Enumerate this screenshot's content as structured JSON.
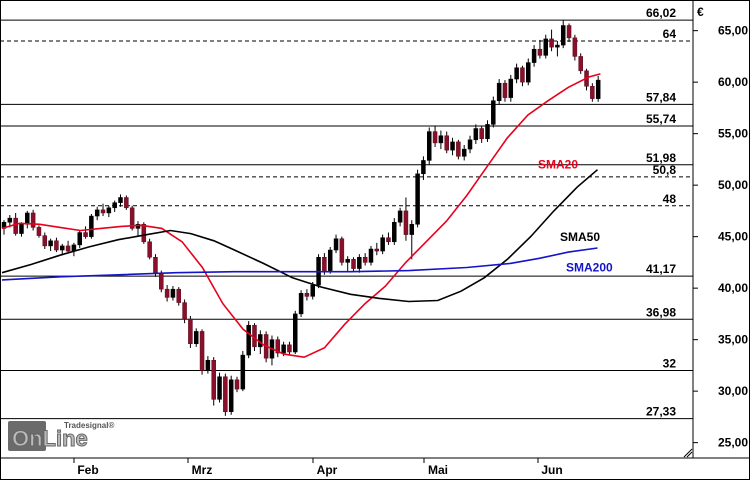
{
  "chart_data": {
    "type": "candlestick",
    "currency_label": "€",
    "y_ticks": [
      "25,00",
      "30,00",
      "35,00",
      "40,00",
      "45,00",
      "50,00",
      "55,00",
      "60,00",
      "65,00"
    ],
    "y_tick_values": [
      25,
      30,
      35,
      40,
      45,
      50,
      55,
      60,
      65
    ],
    "ylim": [
      23.8,
      67.2
    ],
    "x_ticks": [
      "Feb",
      "Mrz",
      "Apr",
      "Mai",
      "Jun"
    ],
    "x_tick_days": [
      22,
      64,
      106,
      148,
      189
    ],
    "xlim": [
      0,
      252
    ],
    "grid": "horizontal levels",
    "levels": [
      {
        "value": 66.02,
        "label": "66,02",
        "style": "solid"
      },
      {
        "value": 64,
        "label": "64",
        "style": "dashed"
      },
      {
        "value": 57.84,
        "label": "57,84",
        "style": "solid"
      },
      {
        "value": 55.74,
        "label": "55,74",
        "style": "solid"
      },
      {
        "value": 51.98,
        "label": "51,98",
        "style": "solid"
      },
      {
        "value": 50.8,
        "label": "50,8",
        "style": "dashed"
      },
      {
        "value": 48,
        "label": "48",
        "style": "dashed"
      },
      {
        "value": 41.17,
        "label": "41,17",
        "style": "solid"
      },
      {
        "value": 36.98,
        "label": "36,98",
        "style": "solid"
      },
      {
        "value": 32,
        "label": "32",
        "style": "solid"
      },
      {
        "value": 27.33,
        "label": "27,33",
        "style": "solid"
      }
    ],
    "series": [
      {
        "name": "SMA20",
        "color": "#e8001c",
        "points": [
          [
            0,
            45.8
          ],
          [
            6,
            46.3
          ],
          [
            13,
            46.2
          ],
          [
            20,
            45.9
          ],
          [
            27,
            45.6
          ],
          [
            34,
            45.8
          ],
          [
            41,
            46.0
          ],
          [
            48,
            46.1
          ],
          [
            55,
            45.8
          ],
          [
            62,
            44.5
          ],
          [
            69,
            42.0
          ],
          [
            76,
            38.5
          ],
          [
            83,
            36.0
          ],
          [
            90,
            34.5
          ],
          [
            97,
            33.6
          ],
          [
            104,
            33.3
          ],
          [
            111,
            34.2
          ],
          [
            118,
            36.5
          ],
          [
            125,
            38.5
          ],
          [
            132,
            40.2
          ],
          [
            139,
            42.5
          ],
          [
            146,
            44.5
          ],
          [
            153,
            46.5
          ],
          [
            160,
            49.0
          ],
          [
            167,
            51.8
          ],
          [
            174,
            54.6
          ],
          [
            181,
            56.8
          ],
          [
            188,
            58.2
          ],
          [
            195,
            59.5
          ],
          [
            202,
            60.5
          ],
          [
            206,
            60.8
          ]
        ]
      },
      {
        "name": "SMA50",
        "color": "#000000",
        "points": [
          [
            0,
            41.5
          ],
          [
            10,
            42.3
          ],
          [
            20,
            43.2
          ],
          [
            30,
            44.0
          ],
          [
            40,
            44.7
          ],
          [
            50,
            45.2
          ],
          [
            58,
            45.6
          ],
          [
            65,
            45.3
          ],
          [
            73,
            44.6
          ],
          [
            80,
            43.7
          ],
          [
            90,
            42.4
          ],
          [
            100,
            41.0
          ],
          [
            110,
            40.1
          ],
          [
            120,
            39.4
          ],
          [
            130,
            39.0
          ],
          [
            140,
            38.7
          ],
          [
            150,
            38.8
          ],
          [
            158,
            39.7
          ],
          [
            166,
            41.0
          ],
          [
            174,
            42.8
          ],
          [
            182,
            45.0
          ],
          [
            190,
            47.5
          ],
          [
            198,
            49.8
          ],
          [
            205,
            51.5
          ]
        ]
      },
      {
        "name": "SMA200",
        "color": "#1414c8",
        "points": [
          [
            0,
            40.8
          ],
          [
            20,
            41.1
          ],
          [
            40,
            41.3
          ],
          [
            60,
            41.5
          ],
          [
            80,
            41.6
          ],
          [
            100,
            41.6
          ],
          [
            120,
            41.6
          ],
          [
            140,
            41.7
          ],
          [
            160,
            42.0
          ],
          [
            175,
            42.4
          ],
          [
            185,
            42.9
          ],
          [
            195,
            43.5
          ],
          [
            205,
            43.9
          ]
        ]
      }
    ],
    "candles": [
      [
        1,
        45.8,
        46.6,
        45.2,
        46.4
      ],
      [
        2,
        46.4,
        47.1,
        45.9,
        46.8
      ],
      [
        3,
        46.8,
        47.3,
        45.1,
        45.3
      ],
      [
        4,
        45.3,
        46.4,
        45.0,
        46.2
      ],
      [
        5,
        46.2,
        47.5,
        45.8,
        47.3
      ],
      [
        6,
        47.3,
        47.6,
        45.6,
        45.9
      ],
      [
        7,
        45.9,
        46.1,
        44.9,
        45.1
      ],
      [
        8,
        45.1,
        45.4,
        43.8,
        44.1
      ],
      [
        9,
        44.1,
        44.8,
        43.6,
        44.6
      ],
      [
        10,
        44.6,
        44.9,
        43.5,
        43.7
      ],
      [
        11,
        43.7,
        44.3,
        43.2,
        44.1
      ],
      [
        12,
        44.1,
        44.6,
        43.4,
        43.6
      ],
      [
        13,
        43.6,
        44.4,
        43.1,
        44.2
      ],
      [
        14,
        44.2,
        45.6,
        43.9,
        45.4
      ],
      [
        15,
        45.4,
        46.0,
        44.8,
        45.0
      ],
      [
        16,
        45.0,
        47.2,
        44.8,
        47.0
      ],
      [
        17,
        47.0,
        47.9,
        46.6,
        47.6
      ],
      [
        18,
        47.6,
        48.2,
        47.0,
        47.3
      ],
      [
        19,
        47.3,
        48.0,
        46.9,
        47.8
      ],
      [
        20,
        47.8,
        48.5,
        47.4,
        48.3
      ],
      [
        21,
        48.3,
        49.1,
        47.9,
        48.8
      ],
      [
        22,
        48.8,
        49.0,
        47.6,
        47.8
      ],
      [
        23,
        47.8,
        48.0,
        45.6,
        45.8
      ],
      [
        24,
        45.8,
        46.5,
        45.0,
        46.2
      ],
      [
        25,
        46.2,
        46.4,
        44.3,
        44.5
      ],
      [
        26,
        44.5,
        44.8,
        42.8,
        43.0
      ],
      [
        27,
        43.0,
        43.3,
        41.1,
        41.4
      ],
      [
        28,
        41.4,
        41.7,
        39.6,
        39.9
      ],
      [
        29,
        39.9,
        40.3,
        38.7,
        39.1
      ],
      [
        30,
        39.1,
        40.2,
        38.8,
        39.9
      ],
      [
        31,
        39.9,
        40.1,
        38.3,
        38.6
      ],
      [
        32,
        38.6,
        38.9,
        36.6,
        37.0
      ],
      [
        33,
        37.0,
        37.3,
        34.2,
        34.6
      ],
      [
        34,
        34.6,
        36.1,
        34.3,
        35.8
      ],
      [
        35,
        35.8,
        36.0,
        31.6,
        32.0
      ],
      [
        36,
        32.0,
        33.4,
        31.7,
        33.0
      ],
      [
        37,
        33.0,
        33.3,
        28.6,
        29.2
      ],
      [
        38,
        29.2,
        31.8,
        28.9,
        31.4
      ],
      [
        39,
        31.4,
        31.7,
        27.6,
        28.0
      ],
      [
        40,
        28.0,
        31.5,
        27.7,
        31.1
      ],
      [
        41,
        31.1,
        31.4,
        29.9,
        30.2
      ],
      [
        42,
        30.2,
        33.9,
        30.0,
        33.5
      ],
      [
        43,
        33.5,
        36.8,
        33.2,
        36.4
      ],
      [
        44,
        36.4,
        36.6,
        33.9,
        34.3
      ],
      [
        45,
        34.3,
        35.9,
        33.6,
        35.5
      ],
      [
        46,
        35.5,
        35.8,
        32.8,
        33.2
      ],
      [
        47,
        33.2,
        35.4,
        32.5,
        35.0
      ],
      [
        48,
        35.0,
        35.3,
        33.3,
        33.7
      ],
      [
        49,
        33.7,
        34.8,
        33.4,
        34.5
      ],
      [
        50,
        34.5,
        34.8,
        33.5,
        33.8
      ],
      [
        51,
        33.8,
        37.8,
        33.6,
        37.5
      ],
      [
        52,
        37.5,
        39.8,
        37.2,
        39.5
      ],
      [
        53,
        39.5,
        39.9,
        38.8,
        39.2
      ],
      [
        54,
        39.2,
        40.6,
        38.9,
        40.3
      ],
      [
        55,
        40.3,
        43.3,
        40.0,
        43.0
      ],
      [
        56,
        43.0,
        43.4,
        41.3,
        41.7
      ],
      [
        57,
        41.7,
        44.0,
        41.4,
        43.7
      ],
      [
        58,
        43.7,
        45.2,
        43.4,
        44.8
      ],
      [
        59,
        44.8,
        45.0,
        42.2,
        42.5
      ],
      [
        60,
        42.5,
        43.1,
        41.6,
        42.8
      ],
      [
        61,
        42.8,
        43.0,
        41.6,
        41.9
      ],
      [
        62,
        41.9,
        43.3,
        41.5,
        43.0
      ],
      [
        63,
        43.0,
        43.4,
        42.2,
        42.5
      ],
      [
        64,
        42.5,
        44.1,
        42.2,
        43.8
      ],
      [
        65,
        43.8,
        44.4,
        43.2,
        43.6
      ],
      [
        66,
        43.6,
        45.2,
        43.3,
        44.9
      ],
      [
        67,
        44.9,
        45.4,
        44.2,
        44.5
      ],
      [
        68,
        44.5,
        46.8,
        44.2,
        46.4
      ],
      [
        69,
        46.4,
        47.8,
        46.0,
        47.5
      ],
      [
        70,
        47.5,
        48.8,
        44.6,
        45.2
      ],
      [
        71,
        45.2,
        46.6,
        42.8,
        46.2
      ],
      [
        72,
        46.2,
        51.5,
        45.9,
        51.1
      ],
      [
        73,
        51.1,
        52.8,
        50.5,
        52.4
      ],
      [
        74,
        52.4,
        55.6,
        52.0,
        55.2
      ],
      [
        75,
        55.2,
        55.8,
        53.7,
        54.1
      ],
      [
        76,
        54.1,
        55.3,
        53.5,
        54.8
      ],
      [
        77,
        54.8,
        55.2,
        53.1,
        53.4
      ],
      [
        78,
        53.4,
        54.6,
        52.9,
        54.2
      ],
      [
        79,
        54.2,
        54.4,
        52.5,
        52.8
      ],
      [
        80,
        52.8,
        53.9,
        52.4,
        53.5
      ],
      [
        81,
        53.5,
        54.8,
        53.1,
        54.4
      ],
      [
        82,
        54.4,
        55.9,
        54.0,
        55.5
      ],
      [
        83,
        55.5,
        55.7,
        54.1,
        54.5
      ],
      [
        84,
        54.5,
        56.3,
        54.2,
        55.9
      ],
      [
        85,
        55.9,
        58.6,
        55.6,
        58.2
      ],
      [
        86,
        58.2,
        60.3,
        57.8,
        59.9
      ],
      [
        87,
        59.9,
        60.2,
        58.1,
        58.5
      ],
      [
        88,
        58.5,
        60.7,
        58.1,
        60.3
      ],
      [
        89,
        60.3,
        61.8,
        59.9,
        61.4
      ],
      [
        90,
        61.4,
        61.6,
        59.6,
        60.0
      ],
      [
        91,
        60.0,
        62.3,
        59.7,
        61.9
      ],
      [
        92,
        61.9,
        63.6,
        61.5,
        63.2
      ],
      [
        93,
        63.2,
        64.1,
        62.3,
        62.6
      ],
      [
        94,
        62.6,
        64.6,
        62.3,
        64.2
      ],
      [
        95,
        64.2,
        65.1,
        63.0,
        63.4
      ],
      [
        96,
        63.4,
        64.0,
        62.5,
        63.6
      ],
      [
        97,
        63.6,
        66.0,
        63.3,
        65.5
      ],
      [
        98,
        65.5,
        65.7,
        63.9,
        64.3
      ],
      [
        99,
        64.3,
        64.6,
        62.1,
        62.5
      ],
      [
        100,
        62.5,
        62.8,
        60.8,
        61.1
      ],
      [
        101,
        61.1,
        61.3,
        59.2,
        59.6
      ],
      [
        102,
        59.6,
        59.9,
        58.1,
        58.4
      ],
      [
        103,
        58.4,
        60.6,
        58.1,
        60.2
      ]
    ]
  },
  "logo": {
    "brand_small": "Tradesignal®",
    "brand_big": "OnLine"
  }
}
